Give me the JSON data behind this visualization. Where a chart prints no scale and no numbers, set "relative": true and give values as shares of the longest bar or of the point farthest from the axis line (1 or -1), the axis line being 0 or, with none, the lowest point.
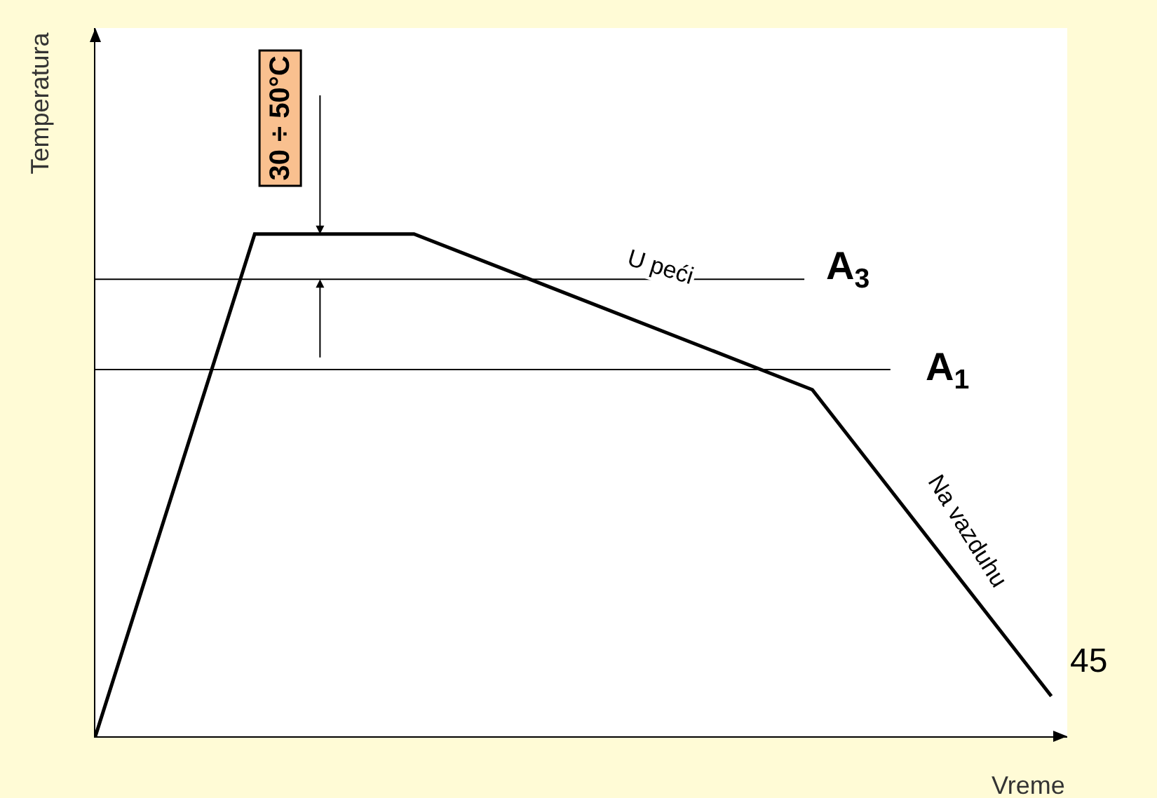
{
  "chart_data": {
    "type": "line",
    "relative": true,
    "xlabel": "Vreme",
    "ylabel": "Temperatura",
    "categories": [
      null,
      null,
      null,
      null,
      null,
      null,
      null,
      null,
      null,
      null,
      null,
      null,
      null
    ],
    "series": [
      {
        "color": "#000000",
        "values": [
          0,
          null,
          1,
          null,
          1,
          null,
          null,
          null,
          null,
          0.69,
          null,
          null,
          0.08
        ]
      }
    ],
    "ref_lines": [
      {
        "axis": "y",
        "value": 0.91,
        "label": "A$_{3}$",
        "color": "#000000"
      },
      {
        "axis": "y",
        "value": 0.73,
        "label": "A$_{1}$",
        "color": "#000000"
      }
    ],
    "annotations": [
      "30 ÷ 50°C",
      "U peći",
      "Na vazduhu",
      "45"
    ],
    "marker": "none",
    "line_style": "solid"
  }
}
